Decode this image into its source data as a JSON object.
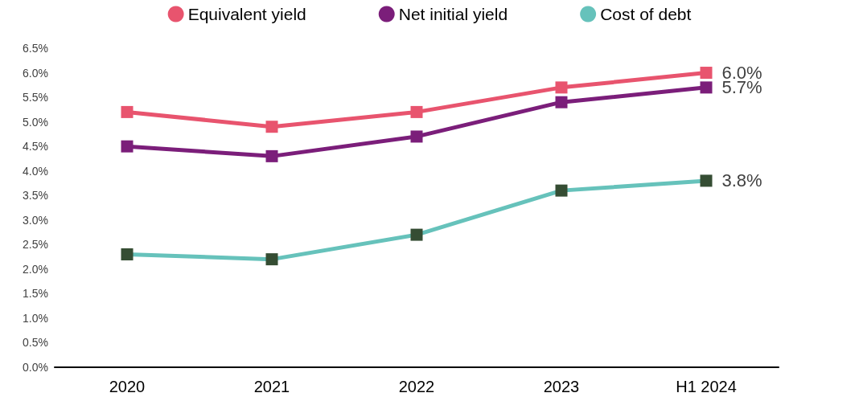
{
  "chart_data": {
    "type": "line",
    "categories": [
      "2020",
      "2021",
      "2022",
      "2023",
      "H1 2024"
    ],
    "series": [
      {
        "name": "Equivalent yield",
        "color": "#e8546e",
        "values": [
          5.2,
          4.9,
          5.2,
          5.7,
          6.0
        ],
        "value_labels": [
          null,
          null,
          null,
          null,
          "6.0%"
        ]
      },
      {
        "name": "Net initial yield",
        "color": "#7b1e7a",
        "values": [
          4.5,
          4.3,
          4.7,
          5.4,
          5.7
        ],
        "value_labels": [
          null,
          null,
          null,
          null,
          "5.7%"
        ]
      },
      {
        "name": "Cost of debt",
        "color": "#66c2bb",
        "colors": [
          "#354d33",
          "#354d33",
          "#354d33",
          "#354d33",
          "#354d33"
        ],
        "values": [
          2.3,
          2.2,
          2.7,
          3.6,
          3.8
        ],
        "value_labels": [
          null,
          null,
          null,
          null,
          "3.8%"
        ]
      }
    ],
    "ylim": [
      0,
      6.5
    ],
    "yticks": [
      {
        "value": 0,
        "label": "0.0%"
      },
      {
        "value": 0.5,
        "label": "0.5%"
      },
      {
        "value": 1,
        "label": "1.0%"
      },
      {
        "value": 1.5,
        "label": "1.5%"
      },
      {
        "value": 2,
        "label": "2.0%"
      },
      {
        "value": 2.5,
        "label": "2.5%"
      },
      {
        "value": 3,
        "label": "3.0%"
      },
      {
        "value": 3.5,
        "label": "3.5%"
      },
      {
        "value": 4,
        "label": "4.0%"
      },
      {
        "value": 4.5,
        "label": "4.5%"
      },
      {
        "value": 5,
        "label": "5.0%"
      },
      {
        "value": 5.5,
        "label": "5.5%"
      },
      {
        "value": 6,
        "label": "6.0%"
      },
      {
        "value": 6.5,
        "label": "6.5%"
      }
    ],
    "grid": false,
    "legend": "top",
    "marker": "square",
    "line_style": "solid"
  }
}
